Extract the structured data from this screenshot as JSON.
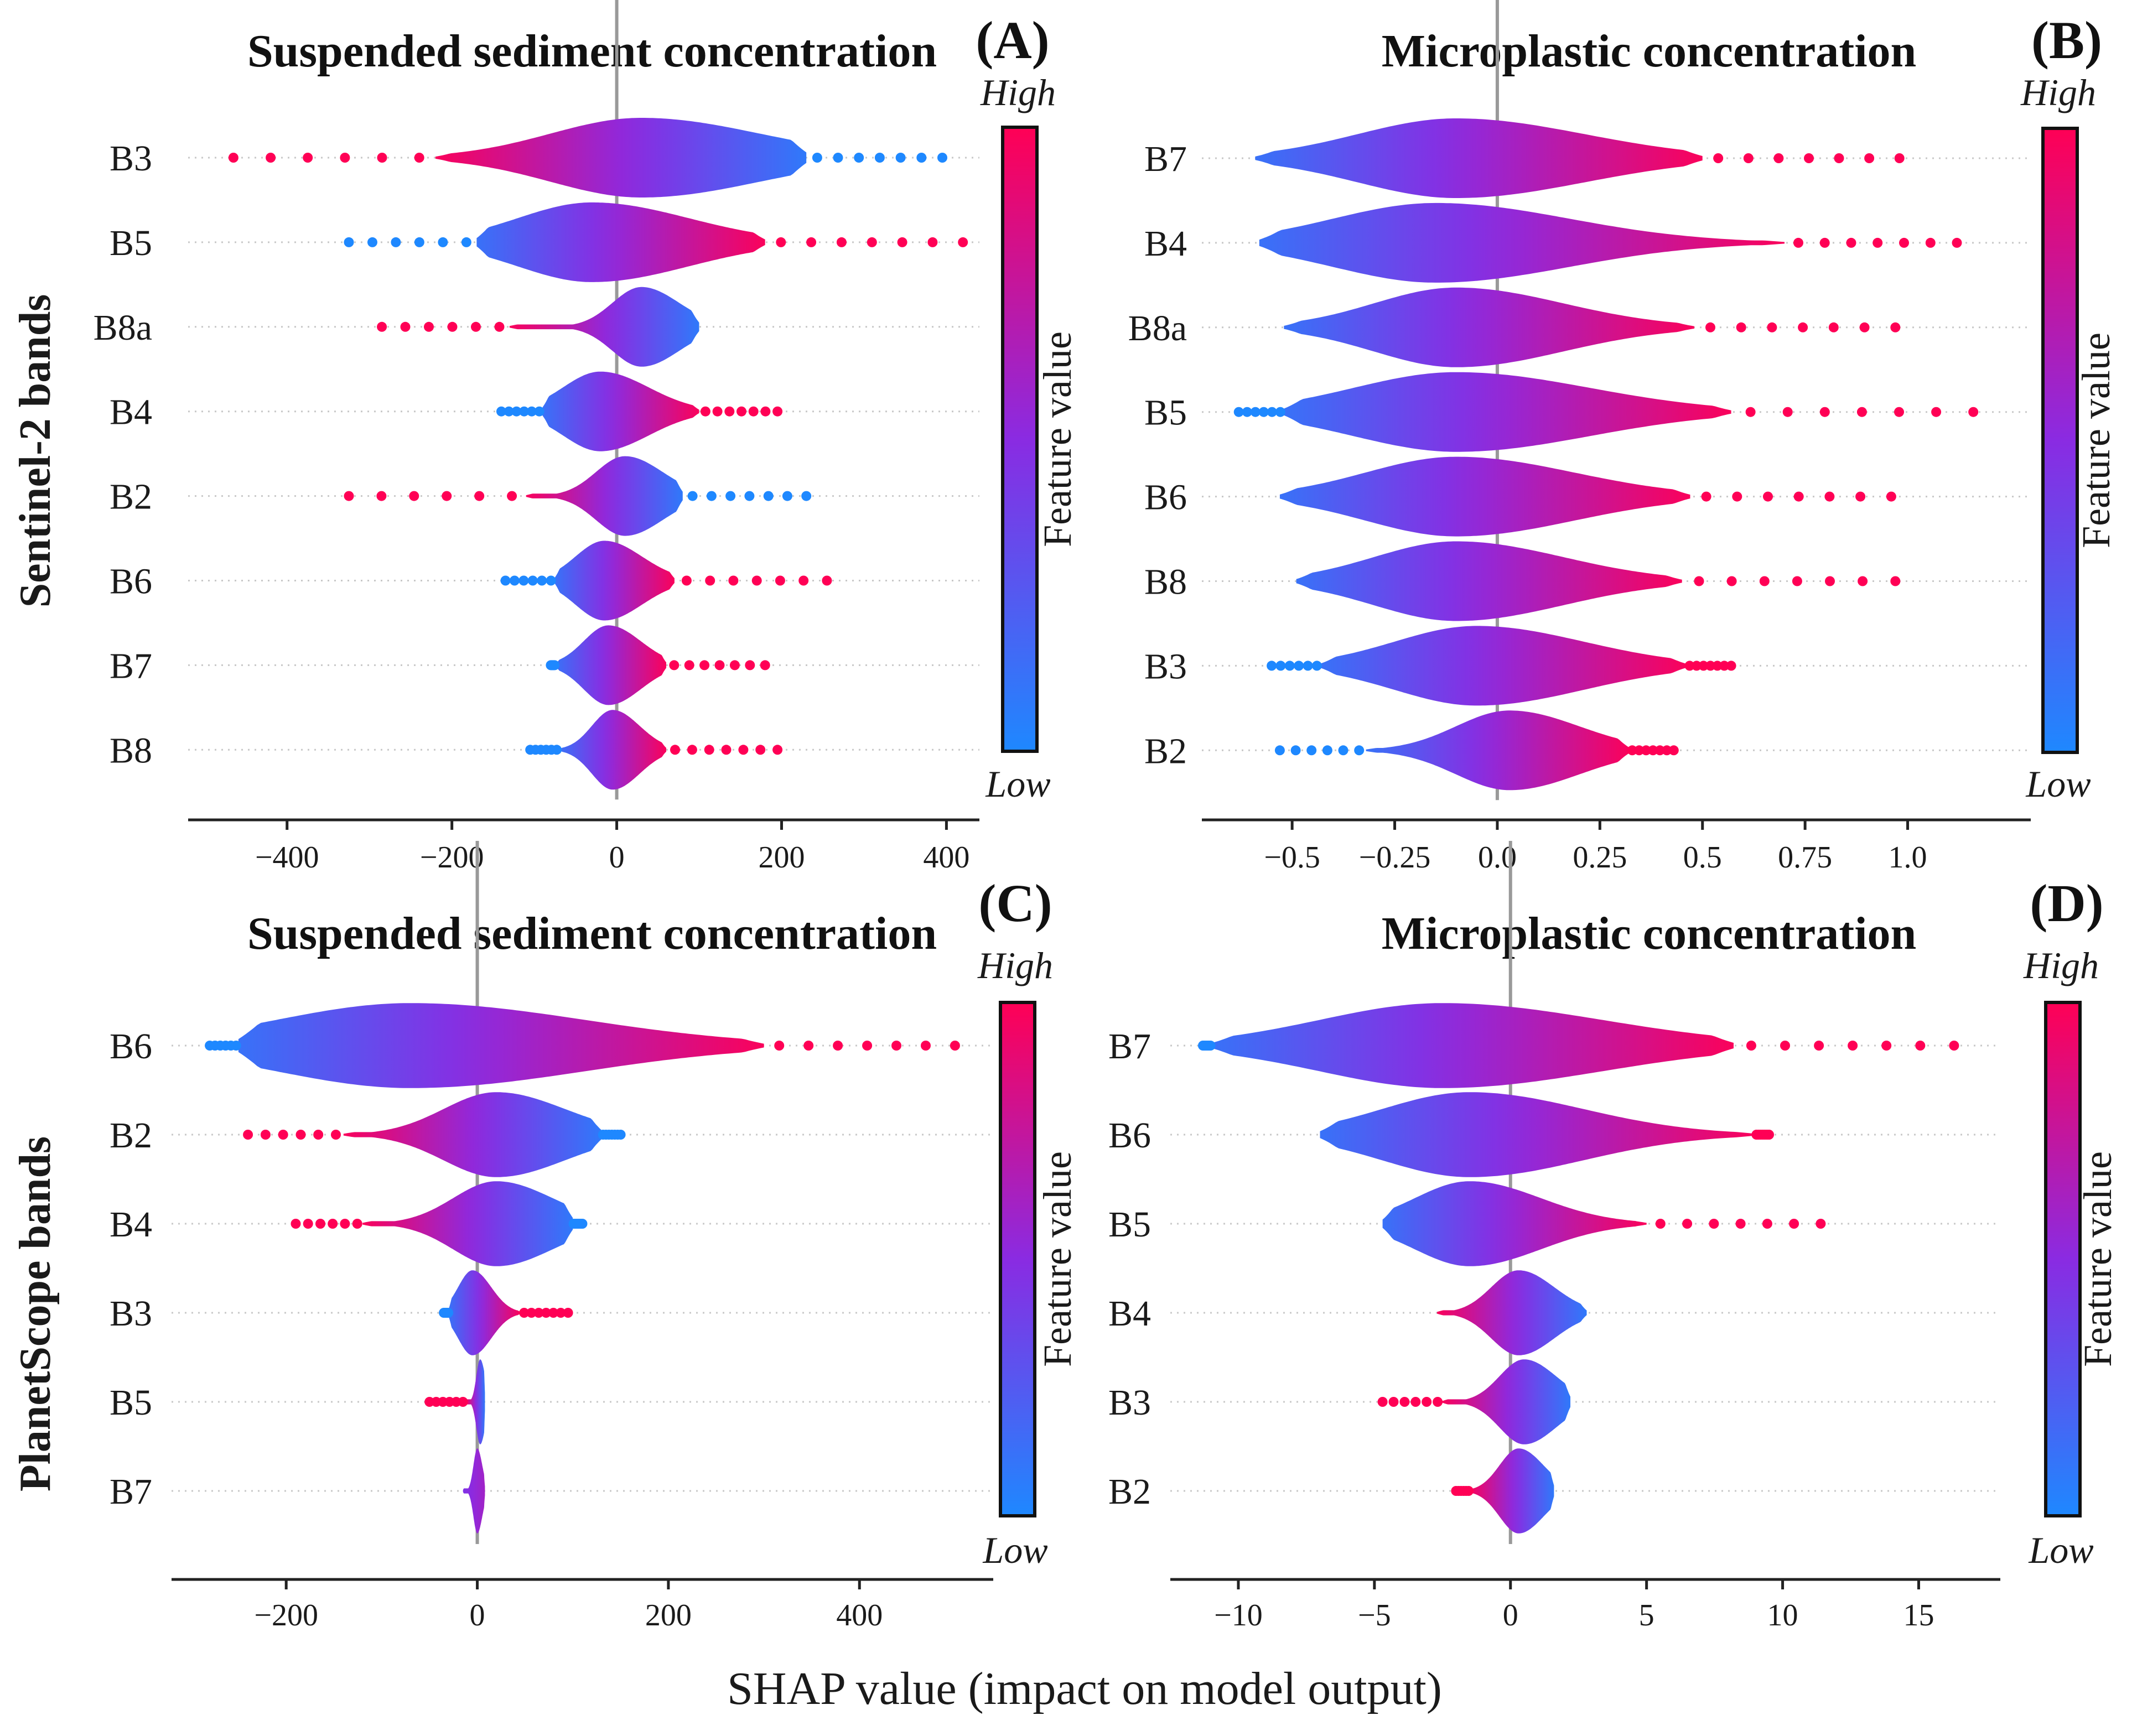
{
  "figure": {
    "xlabel": "SHAP value (impact on model output)",
    "row_labels": [
      "Sentinel-2 bands",
      "PlanetScope bands"
    ]
  },
  "colors": {
    "low": "#1e88ff",
    "mid": "#8a2be2",
    "high": "#ff0055",
    "axis": "#222222",
    "zero_line": "#999999"
  },
  "chart_data": [
    {
      "type": "violin",
      "panel": "(A)",
      "title": "Suspended sediment concentration",
      "features": [
        "B3",
        "B5",
        "B8a",
        "B4",
        "B2",
        "B6",
        "B7",
        "B8"
      ],
      "xlim": [
        -520,
        440
      ],
      "xticks": [
        -400,
        -200,
        0,
        200,
        400
      ],
      "xtick_labels": [
        "−400",
        "−200",
        "0",
        "200",
        "400"
      ],
      "colorbar": {
        "title": "Feature value",
        "high": "High",
        "low": "Low"
      },
      "series": [
        {
          "feature": "B3",
          "min": -465,
          "max": 395,
          "body": [
            -220,
            230
          ],
          "peak": 30,
          "spread": 110,
          "trend": "neg"
        },
        {
          "feature": "B5",
          "min": -325,
          "max": 420,
          "body": [
            -170,
            180
          ],
          "peak": -30,
          "spread": 90,
          "trend": "pos"
        },
        {
          "feature": "B8a",
          "min": -285,
          "max": 100,
          "body": [
            -130,
            100
          ],
          "peak": 30,
          "spread": 35,
          "trend": "neg"
        },
        {
          "feature": "B4",
          "min": -140,
          "max": 195,
          "body": [
            -90,
            100
          ],
          "peak": -20,
          "spread": 45,
          "trend": "pos"
        },
        {
          "feature": "B2",
          "min": -325,
          "max": 230,
          "body": [
            -110,
            80
          ],
          "peak": 10,
          "spread": 35,
          "trend": "neg"
        },
        {
          "feature": "B6",
          "min": -135,
          "max": 255,
          "body": [
            -75,
            70
          ],
          "peak": -15,
          "spread": 35,
          "trend": "pos"
        },
        {
          "feature": "B7",
          "min": -80,
          "max": 180,
          "body": [
            -75,
            60
          ],
          "peak": -10,
          "spread": 30,
          "trend": "pos"
        },
        {
          "feature": "B8",
          "min": -105,
          "max": 195,
          "body": [
            -70,
            60
          ],
          "peak": -5,
          "spread": 25,
          "trend": "pos"
        }
      ]
    },
    {
      "type": "violin",
      "panel": "(B)",
      "title": "Microplastic concentration",
      "features": [
        "B7",
        "B4",
        "B8a",
        "B5",
        "B6",
        "B8",
        "B3",
        "B2"
      ],
      "xlim": [
        -0.72,
        1.3
      ],
      "xticks": [
        -0.5,
        -0.25,
        0.0,
        0.25,
        0.5,
        0.75,
        1.0
      ],
      "xtick_labels": [
        "−0.5",
        "−0.25",
        "0.0",
        "0.25",
        "0.5",
        "0.75",
        "1.0"
      ],
      "colorbar": {
        "title": "Feature value",
        "high": "High",
        "low": "Low"
      },
      "series": [
        {
          "feature": "B7",
          "min": -0.59,
          "max": 0.98,
          "body": [
            -0.59,
            0.5
          ],
          "peak": -0.1,
          "spread": 0.24,
          "trend": "pos"
        },
        {
          "feature": "B4",
          "min": -0.58,
          "max": 1.12,
          "body": [
            -0.58,
            0.7
          ],
          "peak": -0.15,
          "spread": 0.25,
          "trend": "pos"
        },
        {
          "feature": "B8a",
          "min": -0.52,
          "max": 0.97,
          "body": [
            -0.52,
            0.48
          ],
          "peak": -0.1,
          "spread": 0.2,
          "trend": "pos"
        },
        {
          "feature": "B5",
          "min": -0.63,
          "max": 1.16,
          "body": [
            -0.52,
            0.57
          ],
          "peak": -0.1,
          "spread": 0.25,
          "trend": "pos"
        },
        {
          "feature": "B6",
          "min": -0.53,
          "max": 0.96,
          "body": [
            -0.53,
            0.47
          ],
          "peak": -0.1,
          "spread": 0.22,
          "trend": "pos"
        },
        {
          "feature": "B8",
          "min": -0.49,
          "max": 0.97,
          "body": [
            -0.49,
            0.45
          ],
          "peak": -0.1,
          "spread": 0.2,
          "trend": "pos"
        },
        {
          "feature": "B3",
          "min": -0.55,
          "max": 0.57,
          "body": [
            -0.43,
            0.46
          ],
          "peak": -0.05,
          "spread": 0.2,
          "trend": "pos"
        },
        {
          "feature": "B2",
          "min": -0.53,
          "max": 0.43,
          "body": [
            -0.32,
            0.32
          ],
          "peak": 0.03,
          "spread": 0.13,
          "trend": "pos"
        }
      ]
    },
    {
      "type": "violin",
      "panel": "(C)",
      "title": "Suspended sediment concentration",
      "features": [
        "B6",
        "B2",
        "B4",
        "B3",
        "B5",
        "B7"
      ],
      "xlim": [
        -320,
        540
      ],
      "xticks": [
        -200,
        0,
        200,
        400
      ],
      "xtick_labels": [
        "−200",
        "0",
        "200",
        "400"
      ],
      "colorbar": {
        "title": "Feature value",
        "high": "High",
        "low": "Low"
      },
      "series": [
        {
          "feature": "B6",
          "min": -280,
          "max": 500,
          "body": [
            -250,
            300
          ],
          "peak": -70,
          "spread": 140,
          "trend": "pos"
        },
        {
          "feature": "B2",
          "min": -240,
          "max": 150,
          "body": [
            -140,
            130
          ],
          "peak": 20,
          "spread": 55,
          "trend": "neg"
        },
        {
          "feature": "B4",
          "min": -190,
          "max": 110,
          "body": [
            -120,
            100
          ],
          "peak": 20,
          "spread": 45,
          "trend": "neg"
        },
        {
          "feature": "B3",
          "min": -35,
          "max": 95,
          "body": [
            -30,
            45
          ],
          "peak": -5,
          "spread": 15,
          "trend": "pos"
        },
        {
          "feature": "B5",
          "min": -50,
          "max": 8,
          "body": [
            -12,
            8
          ],
          "peak": 3,
          "spread": 4,
          "trend": "neg"
        },
        {
          "feature": "B7",
          "min": -15,
          "max": 8,
          "body": [
            -15,
            8
          ],
          "peak": 0,
          "spread": 4,
          "trend": "mid"
        }
      ]
    },
    {
      "type": "violin",
      "panel": "(D)",
      "title": "Microplastic concentration",
      "features": [
        "B7",
        "B6",
        "B5",
        "B4",
        "B3",
        "B2"
      ],
      "xlim": [
        -12.5,
        18
      ],
      "xticks": [
        -10,
        -5,
        0,
        5,
        10,
        15
      ],
      "xtick_labels": [
        "−10",
        "−5",
        "0",
        "5",
        "10",
        "15"
      ],
      "colorbar": {
        "title": "Feature value",
        "high": "High",
        "low": "Low"
      },
      "series": [
        {
          "feature": "B7",
          "min": -11.3,
          "max": 16.3,
          "body": [
            -11,
            8.2
          ],
          "peak": -2.5,
          "spread": 4.5,
          "trend": "pos"
        },
        {
          "feature": "B6",
          "min": -7,
          "max": 9.5,
          "body": [
            -7,
            9
          ],
          "peak": -1.5,
          "spread": 3.2,
          "trend": "pos"
        },
        {
          "feature": "B5",
          "min": -4.7,
          "max": 11.4,
          "body": [
            -4.7,
            5
          ],
          "peak": -1.5,
          "spread": 2,
          "trend": "pos"
        },
        {
          "feature": "B4",
          "min": -2.7,
          "max": 2.8,
          "body": [
            -2.7,
            2.8
          ],
          "peak": 0.3,
          "spread": 1,
          "trend": "neg"
        },
        {
          "feature": "B3",
          "min": -4.7,
          "max": 2.2,
          "body": [
            -2.5,
            2.2
          ],
          "peak": 0.5,
          "spread": 0.9,
          "trend": "neg"
        },
        {
          "feature": "B2",
          "min": -2,
          "max": 1.6,
          "body": [
            -1.5,
            1.6
          ],
          "peak": 0.3,
          "spread": 0.7,
          "trend": "neg"
        }
      ]
    }
  ]
}
